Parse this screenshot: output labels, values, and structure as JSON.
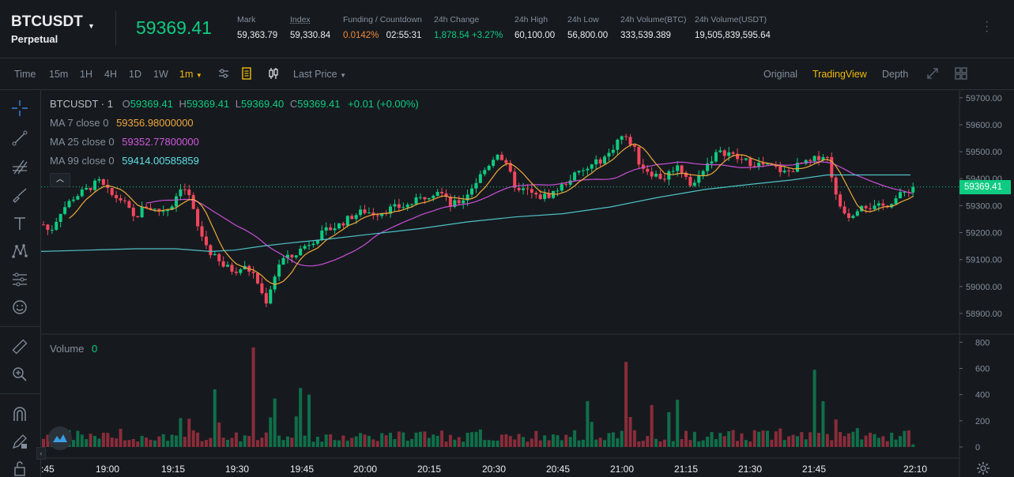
{
  "header": {
    "symbol": "BTCUSDT",
    "contract_type": "Perpetual",
    "last_price": "59369.41",
    "stats": [
      {
        "label": "Mark",
        "value": "59,363.79"
      },
      {
        "label": "Index",
        "value": "59,330.84"
      },
      {
        "label": "Funding / Countdown",
        "value_funding": "0.0142%",
        "value_countdown": "02:55:31"
      },
      {
        "label": "24h Change",
        "value": "1,878.54 +3.27%"
      },
      {
        "label": "24h High",
        "value": "60,100.00"
      },
      {
        "label": "24h Low",
        "value": "56,800.00"
      },
      {
        "label": "24h Volume(BTC)",
        "value": "333,539.389"
      },
      {
        "label": "24h Volume(USDT)",
        "value": "19,505,839,595.64"
      }
    ]
  },
  "toolbar": {
    "time_label": "Time",
    "intervals": [
      "15m",
      "1H",
      "4H",
      "1D",
      "1W",
      "1m"
    ],
    "active_interval": "1m",
    "price_type": "Last Price",
    "views": [
      "Original",
      "TradingView",
      "Depth"
    ],
    "active_view": "TradingView"
  },
  "colors": {
    "up": "#0ecb81",
    "down": "#f6465d",
    "accent": "#f0b90b",
    "ma7": "#f0a73a",
    "ma25": "#c94fd6",
    "ma99": "#4fc1c9"
  },
  "legend": {
    "title": "BTCUSDT · 1",
    "o_label": "O",
    "o": "59369.41",
    "h_label": "H",
    "h": "59369.41",
    "l_label": "L",
    "l": "59369.40",
    "c_label": "C",
    "c": "59369.41",
    "change": "+0.01 (+0.00%)",
    "ma7_label": "MA 7 close 0",
    "ma7": "59356.98000000",
    "ma25_label": "MA 25 close 0",
    "ma25": "59352.77800000",
    "ma99_label": "MA 99 close 0",
    "ma99": "59414.00585859"
  },
  "volume_legend": {
    "label": "Volume",
    "value": "0"
  },
  "chart_data": {
    "type": "candlestick",
    "price_axis_ticks": [
      "59700.00",
      "59600.00",
      "59500.00",
      "59400.00",
      "59300.00",
      "59200.00",
      "59100.00",
      "59000.00",
      "58900.00"
    ],
    "price_range": [
      58850,
      59720
    ],
    "volume_axis_ticks": [
      "800",
      "600",
      "400",
      "200",
      "0"
    ],
    "volume_range": [
      0,
      820
    ],
    "time_axis_ticks": [
      ":45",
      "19:00",
      "19:15",
      "19:30",
      "19:45",
      "20:00",
      "20:15",
      "20:30",
      "20:45",
      "21:00",
      "21:15",
      "21:30",
      "21:45",
      "22:10"
    ],
    "current_price_label": "59369.41",
    "current_price": 59369.41,
    "candles_note": "approximately 200 one-minute candles",
    "ma99_path": [
      [
        0,
        59130
      ],
      [
        60,
        59135
      ],
      [
        120,
        59140
      ],
      [
        170,
        59140
      ],
      [
        215,
        59130
      ],
      [
        245,
        59135
      ],
      [
        280,
        59150
      ],
      [
        310,
        59160
      ],
      [
        360,
        59175
      ],
      [
        420,
        59195
      ],
      [
        480,
        59215
      ],
      [
        540,
        59240
      ],
      [
        600,
        59258
      ],
      [
        660,
        59270
      ],
      [
        720,
        59295
      ],
      [
        780,
        59330
      ],
      [
        840,
        59360
      ],
      [
        900,
        59380
      ],
      [
        950,
        59395
      ],
      [
        995,
        59414
      ],
      [
        1100,
        59414
      ]
    ]
  }
}
